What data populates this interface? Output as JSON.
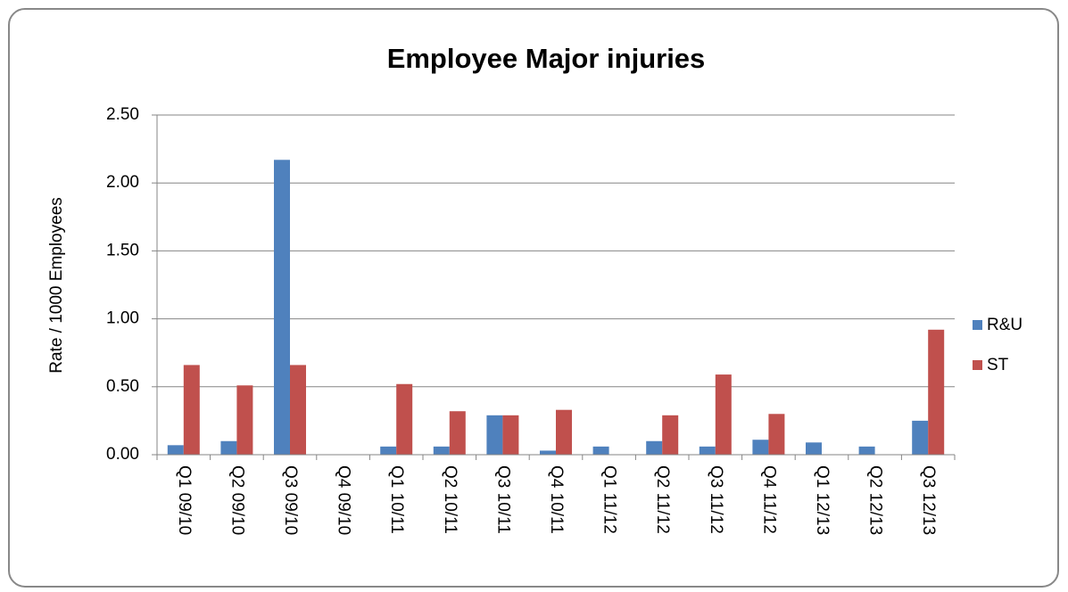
{
  "chart_data": {
    "type": "bar",
    "title": "Employee Major injuries",
    "y_label": "Rate / 1000 Employees",
    "categories": [
      "Q1 09/10",
      "Q2 09/10",
      "Q3 09/10",
      "Q4 09/10",
      "Q1 10/11",
      "Q2 10/11",
      "Q3 10/11",
      "Q4 10/11",
      "Q1 11/12",
      "Q2 11/12",
      "Q3 11/12",
      "Q4 11/12",
      "Q1 12/13",
      "Q2 12/13",
      "Q3 12/13"
    ],
    "series": [
      {
        "name": "R&U",
        "color": "#4f81bd",
        "values": [
          0.07,
          0.1,
          2.17,
          0,
          0.06,
          0.06,
          0.29,
          0.03,
          0.06,
          0.1,
          0.06,
          0.11,
          0.09,
          0.06,
          0.25
        ]
      },
      {
        "name": "ST",
        "color": "#c0504d",
        "values": [
          0.66,
          0.51,
          0.66,
          0,
          0.52,
          0.32,
          0.29,
          0.33,
          0,
          0.29,
          0.59,
          0.3,
          0,
          0,
          0.92
        ]
      }
    ],
    "ylim": [
      0,
      2.5
    ],
    "yticks": [
      {
        "value": 0,
        "label": "0.00"
      },
      {
        "value": 0.5,
        "label": "0.50"
      },
      {
        "value": 1,
        "label": "1.00"
      },
      {
        "value": 1.5,
        "label": "1.50"
      },
      {
        "value": 2,
        "label": "2.00"
      },
      {
        "value": 2.5,
        "label": "2.50"
      }
    ],
    "grid": true,
    "legend": "right"
  }
}
